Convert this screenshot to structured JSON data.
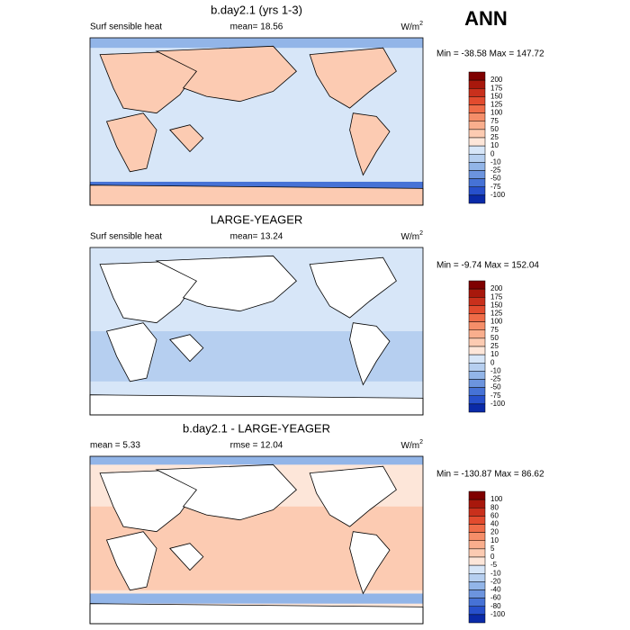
{
  "header": {
    "title": "ANN"
  },
  "panels": [
    {
      "title": "b.day2.1 (yrs 1-3)",
      "left": "Surf sensible heat",
      "center": "mean=  18.56",
      "units": "W/m",
      "units_sup": "2",
      "stats": "Min = -38.58 Max = 147.72",
      "colorbar_labels": [
        "200",
        "175",
        "150",
        "125",
        "100",
        "75",
        "50",
        "25",
        "10",
        "0",
        "-10",
        "-25",
        "-50",
        "-75",
        "-100"
      ],
      "colorbar_colors": [
        "#7f0000",
        "#a8180c",
        "#c9301c",
        "#e24b2e",
        "#ef6c48",
        "#f58e69",
        "#f9ae8d",
        "#fccbb2",
        "#fde6d9",
        "#d7e6f8",
        "#b6cff0",
        "#92b5e8",
        "#6c94de",
        "#4672d6",
        "#2750cc",
        "#0a2aa8"
      ]
    },
    {
      "title": "LARGE-YEAGER",
      "left": "Surf sensible heat",
      "center": "mean=  13.24",
      "units": "W/m",
      "units_sup": "2",
      "stats": "Min =  -9.74 Max = 152.04",
      "colorbar_labels": [
        "200",
        "175",
        "150",
        "125",
        "100",
        "75",
        "50",
        "25",
        "10",
        "0",
        "-10",
        "-25",
        "-50",
        "-75",
        "-100"
      ],
      "colorbar_colors": [
        "#7f0000",
        "#a8180c",
        "#c9301c",
        "#e24b2e",
        "#ef6c48",
        "#f58e69",
        "#f9ae8d",
        "#fccbb2",
        "#fde6d9",
        "#d7e6f8",
        "#b6cff0",
        "#92b5e8",
        "#6c94de",
        "#4672d6",
        "#2750cc",
        "#0a2aa8"
      ]
    },
    {
      "title": "b.day2.1 - LARGE-YEAGER",
      "left": "mean =   5.33",
      "center": "rmse =  12.04",
      "units": "W/m",
      "units_sup": "2",
      "stats": "Min = -130.87 Max =  86.62",
      "colorbar_labels": [
        "100",
        "80",
        "60",
        "40",
        "20",
        "10",
        "5",
        "0",
        "-5",
        "-10",
        "-20",
        "-40",
        "-60",
        "-80",
        "-100"
      ],
      "colorbar_colors": [
        "#7f0000",
        "#a8180c",
        "#c9301c",
        "#e24b2e",
        "#ef6c48",
        "#f58e69",
        "#f9ae8d",
        "#fccbb2",
        "#fde6d9",
        "#d7e6f8",
        "#b6cff0",
        "#92b5e8",
        "#6c94de",
        "#4672d6",
        "#2750cc",
        "#0a2aa8"
      ]
    }
  ]
}
